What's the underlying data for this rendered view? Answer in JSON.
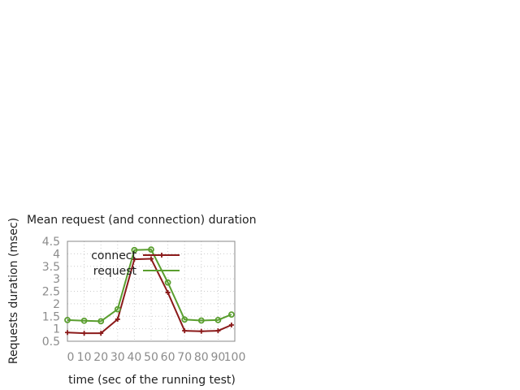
{
  "chart_data": {
    "type": "line",
    "title": "Mean request (and connection) duration",
    "xlabel": "time (sec of the running test)",
    "ylabel": "Requests duration (msec)",
    "xlim": [
      0,
      100
    ],
    "ylim": [
      0.5,
      4.5
    ],
    "xticks": [
      "0",
      "10",
      "20",
      "30",
      "40",
      "50",
      "60",
      "70",
      "80",
      "90",
      "100"
    ],
    "yticks": [
      "0.5",
      "1",
      "1.5",
      "2",
      "2.5",
      "3",
      "3.5",
      "4",
      "4.5"
    ],
    "grid": true,
    "legend_position": "top-right",
    "series": [
      {
        "name": "connect",
        "color": "#8b1a1a",
        "marker": "plus",
        "x": [
          0,
          10,
          20,
          30,
          40,
          50,
          60,
          70,
          80,
          90,
          98
        ],
        "y": [
          0.85,
          0.82,
          0.82,
          1.38,
          3.78,
          3.8,
          2.45,
          0.92,
          0.9,
          0.92,
          1.15
        ]
      },
      {
        "name": "request",
        "color": "#5a9e2f",
        "marker": "circle",
        "x": [
          0,
          10,
          20,
          30,
          40,
          50,
          60,
          70,
          80,
          90,
          98
        ],
        "y": [
          1.35,
          1.32,
          1.3,
          1.78,
          4.15,
          4.17,
          2.85,
          1.37,
          1.33,
          1.35,
          1.57
        ]
      }
    ]
  }
}
